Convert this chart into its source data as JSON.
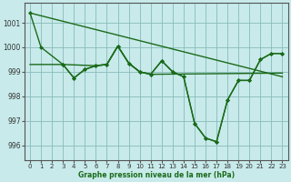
{
  "xlabel": "Graphe pression niveau de la mer (hPa)",
  "xlim": [
    -0.5,
    23.5
  ],
  "ylim": [
    995.4,
    1001.8
  ],
  "yticks": [
    996,
    997,
    998,
    999,
    1000,
    1001
  ],
  "xticks": [
    0,
    1,
    2,
    3,
    4,
    5,
    6,
    7,
    8,
    9,
    10,
    11,
    12,
    13,
    14,
    15,
    16,
    17,
    18,
    19,
    20,
    21,
    22,
    23
  ],
  "bg_color": "#c8eaea",
  "grid_color": "#88bbbb",
  "line_color": "#1a6b1a",
  "line_color2": "#2d8b2d",
  "line1_x": [
    0,
    1,
    3,
    4,
    5,
    6,
    7,
    8,
    9,
    10,
    11,
    12,
    13,
    14,
    15,
    16,
    17,
    18,
    19,
    20,
    21,
    22,
    23
  ],
  "line1_y": [
    1001.4,
    1000.0,
    999.3,
    998.75,
    999.1,
    999.25,
    999.3,
    1000.05,
    999.35,
    999.0,
    998.9,
    999.45,
    999.0,
    998.8,
    996.9,
    996.3,
    996.15,
    997.85,
    998.65,
    998.65,
    999.5,
    999.75,
    999.75
  ],
  "line2_x": [
    0,
    7,
    8,
    9,
    10,
    11,
    12,
    13,
    14,
    15,
    16,
    17,
    18,
    19,
    20,
    21,
    22,
    23
  ],
  "line2_y": [
    1001.4,
    999.3,
    1000.05,
    999.35,
    999.0,
    998.9,
    999.45,
    999.0,
    998.8,
    996.9,
    996.3,
    996.15,
    997.85,
    998.65,
    998.65,
    999.5,
    999.75,
    999.75
  ],
  "line3_x": [
    0,
    3,
    4,
    5,
    6,
    7,
    8,
    9,
    10,
    11,
    23
  ],
  "line3_y": [
    1001.4,
    999.3,
    998.75,
    999.1,
    999.25,
    999.3,
    1000.05,
    999.35,
    999.0,
    998.9,
    998.8
  ],
  "line4_x": [
    0,
    23
  ],
  "line4_y": [
    1001.4,
    998.8
  ],
  "marker": "D",
  "markersize": 2.5,
  "linewidth": 1.0
}
